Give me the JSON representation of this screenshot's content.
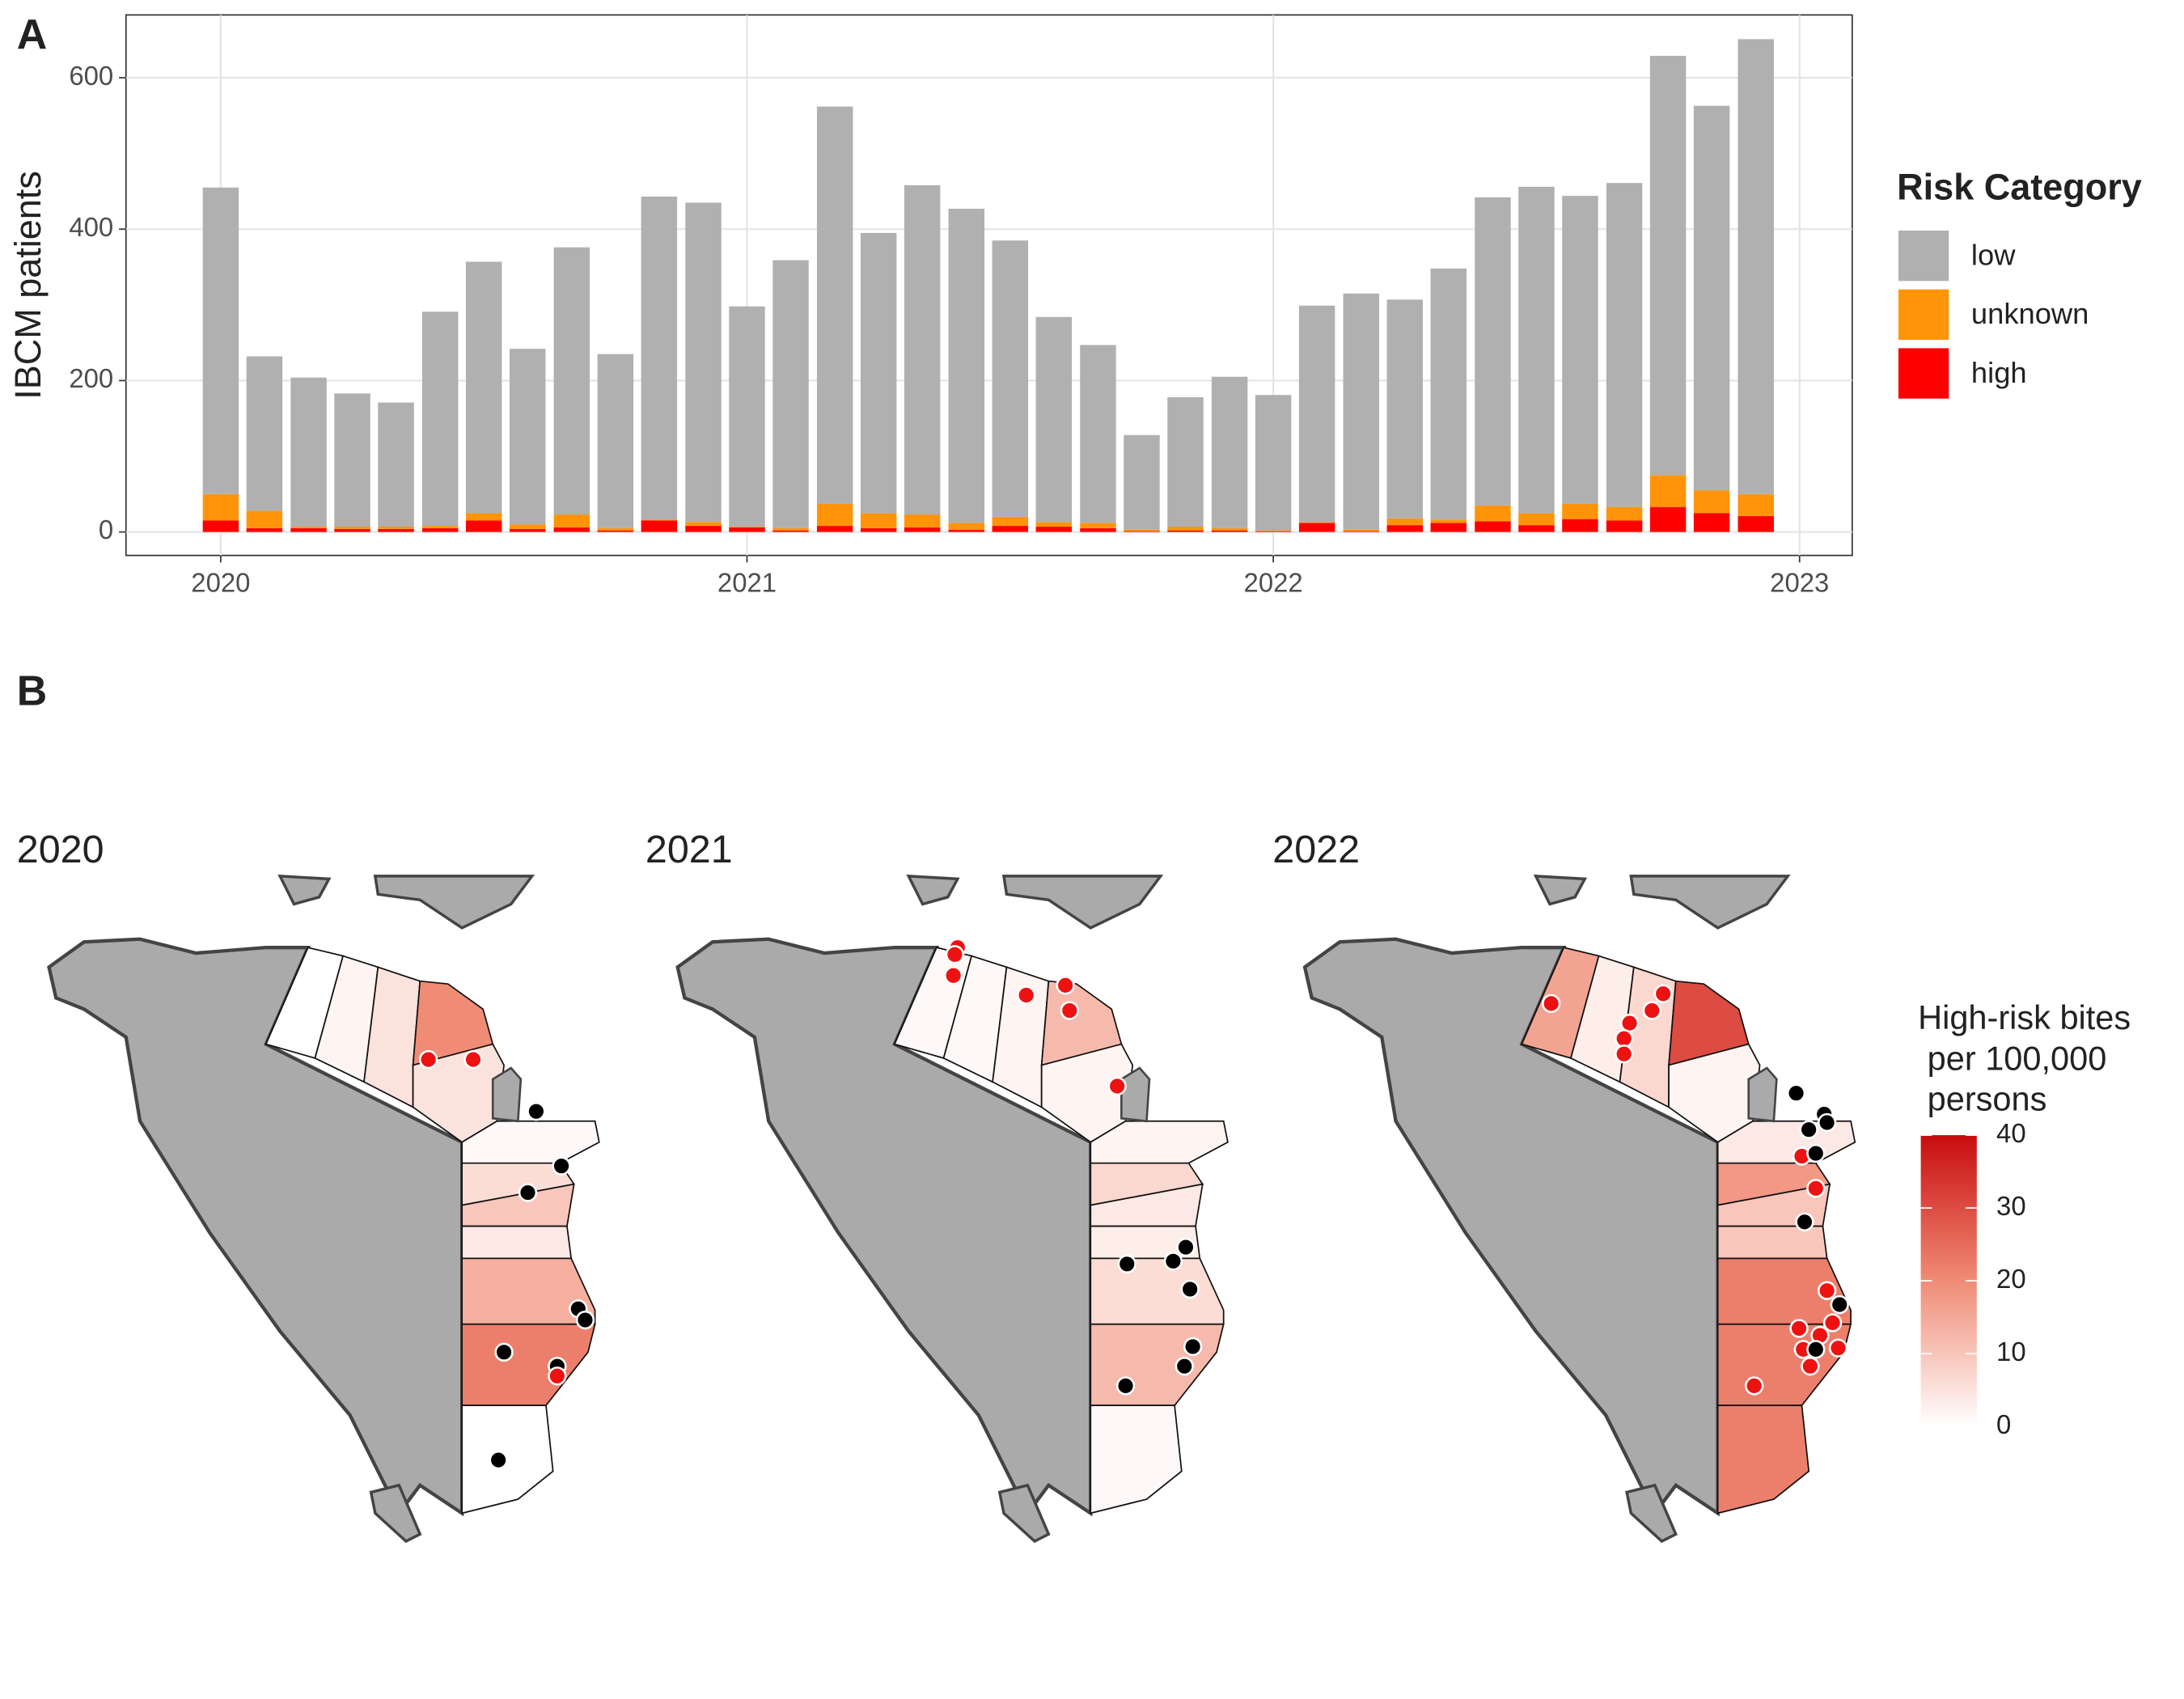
{
  "panel_labels": [
    "A",
    "B"
  ],
  "chart_data": [
    {
      "type": "bar",
      "stacked": true,
      "ylabel": "IBCM patients",
      "legend_title": "Risk Category",
      "legend": "right",
      "grid": true,
      "x": [
        2020,
        2020.083,
        2020.167,
        2020.25,
        2020.333,
        2020.417,
        2020.5,
        2020.583,
        2020.667,
        2020.75,
        2020.833,
        2020.917,
        2021,
        2021.083,
        2021.167,
        2021.25,
        2021.333,
        2021.417,
        2021.5,
        2021.583,
        2021.667,
        2021.75,
        2021.833,
        2021.917,
        2022,
        2022.083,
        2022.167,
        2022.25,
        2022.333,
        2022.417,
        2022.5,
        2022.583,
        2022.667,
        2022.75,
        2022.833,
        2022.917
      ],
      "xlim": [
        2019.82,
        2023.1
      ],
      "xticks": [
        2020,
        2021,
        2022,
        2023
      ],
      "ylim": [
        -31,
        683
      ],
      "yticks": [
        0,
        200,
        400,
        600
      ],
      "series": [
        {
          "name": "low",
          "color": "#b0b0b0",
          "values": [
            405,
            204,
            197,
            176,
            164,
            283,
            332,
            232,
            353,
            230,
            427,
            422,
            291,
            354,
            525,
            370,
            435,
            415,
            365,
            271,
            235,
            125,
            171,
            200,
            179,
            286,
            312,
            289,
            332,
            407,
            431,
            407,
            428,
            554,
            508,
            601
          ]
        },
        {
          "name": "unknown",
          "color": "#ff9409",
          "values": [
            35,
            23,
            2,
            3,
            3,
            3,
            10,
            6,
            17,
            3,
            1,
            5,
            1,
            3,
            29,
            20,
            17,
            9,
            12,
            6,
            7,
            2,
            5,
            3,
            1,
            1,
            2,
            9,
            4,
            21,
            16,
            20,
            18,
            42,
            30,
            29
          ]
        },
        {
          "name": "high",
          "color": "#ff0000",
          "values": [
            15,
            5,
            5,
            4,
            4,
            5,
            15,
            4,
            6,
            2,
            15,
            8,
            6,
            2,
            8,
            5,
            6,
            3,
            8,
            7,
            5,
            1,
            2,
            2,
            1,
            12,
            1,
            9,
            12,
            14,
            9,
            17,
            15,
            33,
            25,
            21
          ]
        }
      ]
    },
    {
      "type": "choropleth",
      "legend_title": [
        "High-risk bites",
        " per 100,000",
        " persons"
      ],
      "clim": [
        0,
        40
      ],
      "cticks": [
        0,
        10,
        20,
        30,
        40
      ],
      "panels": [
        {
          "title": "2020",
          "values": [
            0,
            2,
            5,
            20,
            5,
            1,
            6,
            10,
            4,
            14,
            22,
            0
          ]
        },
        {
          "title": "2021",
          "values": [
            1,
            1,
            2,
            12,
            2,
            2,
            7,
            4,
            3,
            6,
            12,
            1
          ]
        },
        {
          "title": "2022",
          "values": [
            16,
            3,
            7,
            30,
            2,
            4,
            18,
            10,
            10,
            22,
            22,
            22
          ]
        }
      ]
    }
  ]
}
